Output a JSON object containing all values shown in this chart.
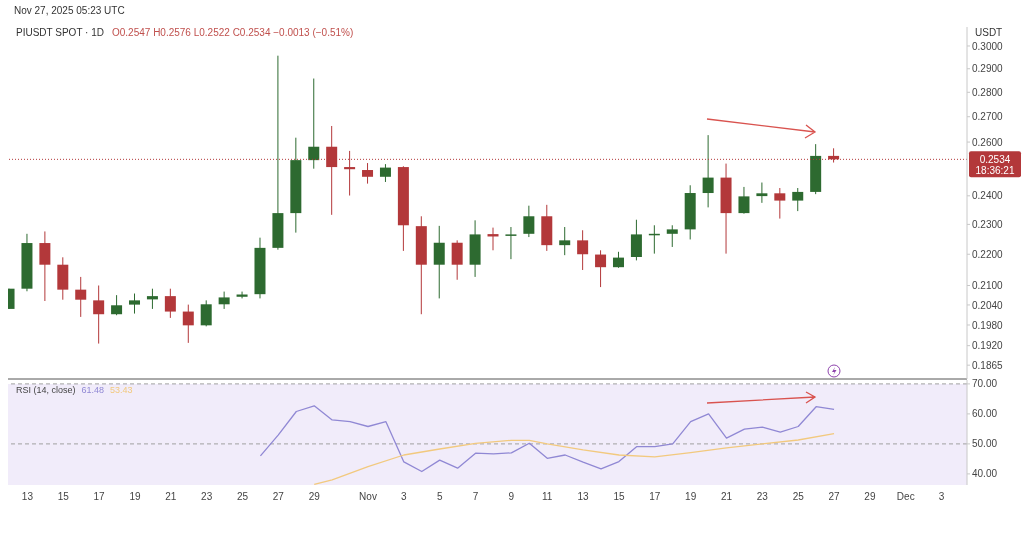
{
  "chart_data": [
    {
      "type": "candlestick",
      "title": "PIUSDT SPOT · 1D",
      "subtitle": "O0.2547 H0.2576 L0.2522 C0.2534 −0.0013 (−0.51%)",
      "ylabel": "USDT",
      "annotations": [
        "Nov 27, 2025 05:23 UTC",
        "18:36:21"
      ],
      "x": [
        "2025-10-12",
        "2025-10-13",
        "2025-10-14",
        "2025-10-15",
        "2025-10-16",
        "2025-10-17",
        "2025-10-18",
        "2025-10-19",
        "2025-10-20",
        "2025-10-21",
        "2025-10-22",
        "2025-10-23",
        "2025-10-24",
        "2025-10-25",
        "2025-10-26",
        "2025-10-27",
        "2025-10-28",
        "2025-10-29",
        "2025-10-30",
        "2025-10-31",
        "2025-11-01",
        "2025-11-02",
        "2025-11-03",
        "2025-11-04",
        "2025-11-05",
        "2025-11-06",
        "2025-11-07",
        "2025-11-08",
        "2025-11-09",
        "2025-11-10",
        "2025-11-11",
        "2025-11-12",
        "2025-11-13",
        "2025-11-14",
        "2025-11-15",
        "2025-11-16",
        "2025-11-17",
        "2025-11-18",
        "2025-11-19",
        "2025-11-20",
        "2025-11-21",
        "2025-11-22",
        "2025-11-23",
        "2025-11-24",
        "2025-11-25",
        "2025-11-26",
        "2025-11-27"
      ],
      "ohlc": [
        [
          0.2028,
          0.209,
          0.2028,
          0.209
        ],
        [
          0.209,
          0.2268,
          0.2082,
          0.2237
        ],
        [
          0.2237,
          0.2276,
          0.2052,
          0.2166
        ],
        [
          0.2166,
          0.219,
          0.2056,
          0.2087
        ],
        [
          0.2087,
          0.2127,
          0.2004,
          0.2056
        ],
        [
          0.2054,
          0.21,
          0.1926,
          0.2012
        ],
        [
          0.2012,
          0.207,
          0.2009,
          0.2039
        ],
        [
          0.2041,
          0.2075,
          0.2014,
          0.2054
        ],
        [
          0.2057,
          0.209,
          0.2028,
          0.2067
        ],
        [
          0.2067,
          0.209,
          0.2001,
          0.202
        ],
        [
          0.202,
          0.2041,
          0.1928,
          0.1979
        ],
        [
          0.1979,
          0.2054,
          0.1976,
          0.2042
        ],
        [
          0.2042,
          0.2081,
          0.2028,
          0.2063
        ],
        [
          0.2065,
          0.2081,
          0.206,
          0.2072
        ],
        [
          0.2073,
          0.2255,
          0.206,
          0.2221
        ],
        [
          0.2221,
          0.2957,
          0.2215,
          0.2339
        ],
        [
          0.2339,
          0.2617,
          0.2272,
          0.2531
        ],
        [
          0.2531,
          0.2858,
          0.2499,
          0.2582
        ],
        [
          0.2582,
          0.2663,
          0.2333,
          0.2505
        ],
        [
          0.2505,
          0.2566,
          0.2401,
          0.2497
        ],
        [
          0.2494,
          0.252,
          0.2444,
          0.2469
        ],
        [
          0.2469,
          0.2516,
          0.245,
          0.2503
        ],
        [
          0.2505,
          0.2508,
          0.2211,
          0.2297
        ],
        [
          0.2294,
          0.2328,
          0.2012,
          0.2166
        ],
        [
          0.2166,
          0.2295,
          0.206,
          0.2238
        ],
        [
          0.2238,
          0.2246,
          0.2118,
          0.2166
        ],
        [
          0.2166,
          0.2314,
          0.2127,
          0.2266
        ],
        [
          0.2267,
          0.2289,
          0.2213,
          0.2259
        ],
        [
          0.2261,
          0.2291,
          0.2184,
          0.2266
        ],
        [
          0.2268,
          0.2365,
          0.2257,
          0.2328
        ],
        [
          0.2328,
          0.2368,
          0.2211,
          0.223
        ],
        [
          0.223,
          0.2291,
          0.2197,
          0.2246
        ],
        [
          0.2246,
          0.228,
          0.2149,
          0.22
        ],
        [
          0.2199,
          0.2213,
          0.2095,
          0.2158
        ],
        [
          0.2158,
          0.2208,
          0.2156,
          0.2189
        ],
        [
          0.2191,
          0.2316,
          0.218,
          0.2266
        ],
        [
          0.2266,
          0.2297,
          0.2202,
          0.2268
        ],
        [
          0.2268,
          0.2297,
          0.2224,
          0.2283
        ],
        [
          0.2283,
          0.2438,
          0.2249,
          0.241
        ],
        [
          0.241,
          0.2627,
          0.2359,
          0.2466
        ],
        [
          0.2466,
          0.2518,
          0.2202,
          0.2339
        ],
        [
          0.2339,
          0.2432,
          0.2337,
          0.2398
        ],
        [
          0.2399,
          0.2448,
          0.2375,
          0.2409
        ],
        [
          0.2409,
          0.2428,
          0.232,
          0.2383
        ],
        [
          0.2383,
          0.2428,
          0.2346,
          0.2414
        ],
        [
          0.2414,
          0.2592,
          0.2406,
          0.2547
        ],
        [
          0.2547,
          0.2576,
          0.2522,
          0.2534
        ]
      ],
      "colors": [
        "#2d6a30",
        "#2d6a30",
        "#b3383a",
        "#b3383a",
        "#b3383a",
        "#b3383a",
        "#2d6a30",
        "#2d6a30",
        "#2d6a30",
        "#b3383a",
        "#b3383a",
        "#2d6a30",
        "#2d6a30",
        "#2d6a30",
        "#2d6a30",
        "#2d6a30",
        "#2d6a30",
        "#2d6a30",
        "#b3383a",
        "#b3383a",
        "#b3383a",
        "#2d6a30",
        "#b3383a",
        "#b3383a",
        "#2d6a30",
        "#b3383a",
        "#2d6a30",
        "#b3383a",
        "#2d6a30",
        "#2d6a30",
        "#b3383a",
        "#2d6a30",
        "#b3383a",
        "#b3383a",
        "#2d6a30",
        "#2d6a30",
        "#2d6a30",
        "#2d6a30",
        "#2d6a30",
        "#2d6a30",
        "#b3383a",
        "#2d6a30",
        "#2d6a30",
        "#b3383a",
        "#2d6a30",
        "#2d6a30",
        "#b3383a"
      ],
      "log": "y",
      "ylim": [
        0.1827,
        0.3086
      ],
      "yticks": [
        {
          "value": 0.1865,
          "label": "0.1865"
        },
        {
          "value": 0.192,
          "label": "0.1920"
        },
        {
          "value": 0.198,
          "label": "0.1980"
        },
        {
          "value": 0.204,
          "label": "0.2040"
        },
        {
          "value": 0.21,
          "label": "0.2100"
        },
        {
          "value": 0.22,
          "label": "0.2200"
        },
        {
          "value": 0.23,
          "label": "0.2300"
        },
        {
          "value": 0.24,
          "label": "0.2400"
        },
        {
          "value": 0.26,
          "label": "0.2600"
        },
        {
          "value": 0.27,
          "label": "0.2700"
        },
        {
          "value": 0.28,
          "label": "0.2800"
        },
        {
          "value": 0.29,
          "label": "0.2900"
        },
        {
          "value": 0.3,
          "label": "0.3000"
        }
      ],
      "xlim": [
        "2025-10-11T22:00",
        "2025-12-04T10:00"
      ],
      "tick_labels": "y",
      "ref_lines": [
        {
          "axis": "y",
          "value": 0.2534,
          "label": "0.2534",
          "color": "#b3383a",
          "line_style": "dotted"
        }
      ]
    },
    {
      "type": "line",
      "title": "RSI (14, close)",
      "annotations": [
        "61.48",
        "53.43"
      ],
      "series": [
        {
          "color": "#9088d4",
          "x": [
            "2025-10-26",
            "2025-10-27",
            "2025-10-28",
            "2025-10-29",
            "2025-10-30",
            "2025-10-31",
            "2025-11-01",
            "2025-11-02",
            "2025-11-03",
            "2025-11-04",
            "2025-11-05",
            "2025-11-06",
            "2025-11-07",
            "2025-11-08",
            "2025-11-09",
            "2025-11-10",
            "2025-11-11",
            "2025-11-12",
            "2025-11-13",
            "2025-11-14",
            "2025-11-15",
            "2025-11-16",
            "2025-11-17",
            "2025-11-18",
            "2025-11-19",
            "2025-11-20",
            "2025-11-21",
            "2025-11-22",
            "2025-11-23",
            "2025-11-24",
            "2025-11-25",
            "2025-11-26",
            "2025-11-27"
          ],
          "values": [
            46.0,
            53.0,
            60.8,
            62.7,
            58.0,
            57.4,
            55.8,
            57.4,
            44.0,
            40.8,
            44.6,
            41.9,
            46.9,
            46.7,
            47.0,
            50.2,
            45.2,
            46.3,
            43.9,
            41.7,
            44.1,
            49.1,
            49.1,
            50.0,
            57.4,
            60.0,
            51.9,
            54.9,
            55.6,
            53.9,
            55.8,
            62.4,
            61.48
          ]
        },
        {
          "color": "#f2c97e",
          "x": [
            "2025-10-29",
            "2025-10-30",
            "2025-11-01",
            "2025-11-03",
            "2025-11-05",
            "2025-11-07",
            "2025-11-09",
            "2025-11-10",
            "2025-11-11",
            "2025-11-13",
            "2025-11-15",
            "2025-11-17",
            "2025-11-19",
            "2025-11-21",
            "2025-11-23",
            "2025-11-25",
            "2025-11-27"
          ],
          "values": [
            36.5,
            38.0,
            42.4,
            46.3,
            48.3,
            50.2,
            51.2,
            51.2,
            50.0,
            48.0,
            46.3,
            45.7,
            47.1,
            48.7,
            50.0,
            51.3,
            53.43
          ]
        }
      ],
      "ylim": [
        36.3,
        71.3
      ],
      "yticks": [
        {
          "value": 40,
          "label": "40.00"
        },
        {
          "value": 50,
          "label": "50.00"
        },
        {
          "value": 60,
          "label": "60.00"
        },
        {
          "value": 70,
          "label": "70.00"
        }
      ],
      "xlim": [
        "2025-10-11T22:00",
        "2025-12-04T10:00"
      ],
      "xticks": [
        {
          "value": "2025-10-13",
          "label": "13"
        },
        {
          "value": "2025-10-15",
          "label": "15"
        },
        {
          "value": "2025-10-17",
          "label": "17"
        },
        {
          "value": "2025-10-19",
          "label": "19"
        },
        {
          "value": "2025-10-21",
          "label": "21"
        },
        {
          "value": "2025-10-23",
          "label": "23"
        },
        {
          "value": "2025-10-25",
          "label": "25"
        },
        {
          "value": "2025-10-27",
          "label": "27"
        },
        {
          "value": "2025-10-29",
          "label": "29"
        },
        {
          "value": "2025-11-01",
          "label": "Nov"
        },
        {
          "value": "2025-11-03",
          "label": "3"
        },
        {
          "value": "2025-11-05",
          "label": "5"
        },
        {
          "value": "2025-11-07",
          "label": "7"
        },
        {
          "value": "2025-11-09",
          "label": "9"
        },
        {
          "value": "2025-11-11",
          "label": "11"
        },
        {
          "value": "2025-11-13",
          "label": "13"
        },
        {
          "value": "2025-11-15",
          "label": "15"
        },
        {
          "value": "2025-11-17",
          "label": "17"
        },
        {
          "value": "2025-11-19",
          "label": "19"
        },
        {
          "value": "2025-11-21",
          "label": "21"
        },
        {
          "value": "2025-11-23",
          "label": "23"
        },
        {
          "value": "2025-11-25",
          "label": "25"
        },
        {
          "value": "2025-11-27",
          "label": "27"
        },
        {
          "value": "2025-11-29",
          "label": "29"
        },
        {
          "value": "2025-12-01",
          "label": "Dec"
        },
        {
          "value": "2025-12-03",
          "label": "3"
        }
      ],
      "ref_lines": [
        {
          "axis": "y",
          "value": 70,
          "color": "#a0a0a0",
          "line_style": "dashed"
        },
        {
          "axis": "y",
          "value": 50,
          "color": "#a0a0a0",
          "line_style": "dashed"
        }
      ],
      "bands": [
        {
          "axis": "y",
          "from": 36.3,
          "to": 70,
          "color": "#f1ecfa"
        }
      ]
    }
  ]
}
